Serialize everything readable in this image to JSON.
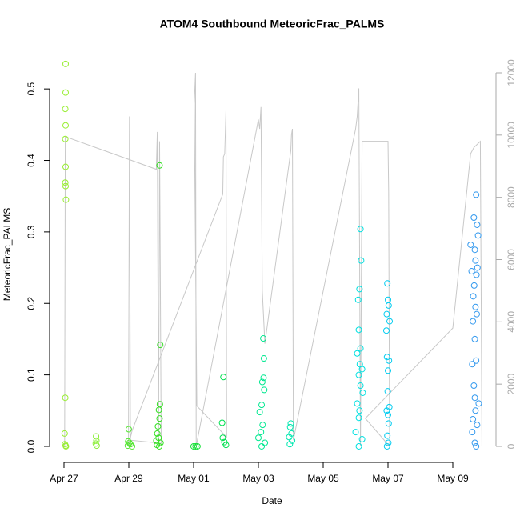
{
  "chart_data": {
    "type": "scatter",
    "title": "ATOM4 Southbound MeteoricFrac_PALMS",
    "x_label": "Date",
    "y_label": "MeteoricFrac_PALMS",
    "xlim": [
      -0.444,
      13.333
    ],
    "xticks": [
      {
        "value": 0,
        "label": "Apr 27"
      },
      {
        "value": 2,
        "label": "Apr 29"
      },
      {
        "value": 4,
        "label": "May 01"
      },
      {
        "value": 6,
        "label": "May 03"
      },
      {
        "value": 8,
        "label": "May 05"
      },
      {
        "value": 10,
        "label": "May 07"
      },
      {
        "value": 12,
        "label": "May 09"
      }
    ],
    "ylim": [
      -0.0224,
      0.555
    ],
    "yticks": [
      {
        "value": 0,
        "label": "0.0"
      },
      0.1,
      0.2,
      0.3,
      0.4,
      0.5
    ],
    "y2lim": [
      -514,
      12745
    ],
    "y2ticks": [
      0,
      2000,
      4000,
      6000,
      8000,
      10000,
      12000
    ],
    "series": [
      {
        "type": "line",
        "axis": "y2",
        "color": "#c8c8c8",
        "x": [
          0.02,
          0.04,
          2.85,
          2.88,
          2.92,
          2.95,
          3.0,
          2.05,
          2.02,
          1.99,
          2.1,
          4.9,
          4.92,
          4.96,
          5.0,
          5.02,
          4.1,
          4.02,
          4.06,
          4.08,
          6.0,
          6.04,
          6.08,
          6.12,
          6.2,
          7.0,
          7.02,
          7.05,
          7.08,
          9.0,
          9.05,
          9.1,
          9.15,
          9.2,
          10.0,
          10.02,
          10.05,
          9.3,
          12.0,
          12.55,
          12.65,
          12.75,
          12.85,
          12.9
        ],
        "values": [
          0,
          9950,
          8900,
          10100,
          200,
          9800,
          100,
          200,
          10600,
          0,
          500,
          8100,
          9300,
          9400,
          10800,
          300,
          1300,
          11000,
          12000,
          0,
          10500,
          10200,
          10900,
          5000,
          3300,
          9500,
          10000,
          10200,
          200,
          10200,
          10600,
          11500,
          0,
          9800,
          9800,
          8200,
          0,
          900,
          3800,
          9400,
          9600,
          9700,
          9800,
          0
        ]
      },
      {
        "color": "#99ee33",
        "x": [
          0.05,
          0.05,
          0.04,
          0.05,
          0.04,
          0.05,
          0.04,
          0.05,
          0.06,
          0.04,
          0.02,
          0.03,
          0.05,
          0.06
        ],
        "values": [
          0.535,
          0.495,
          0.472,
          0.449,
          0.43,
          0.391,
          0.369,
          0.364,
          0.345,
          0.068,
          0.018,
          0.003,
          0.001,
          0
        ]
      },
      {
        "color": "#88ee33",
        "x": [
          0.99,
          1.0,
          0.98,
          1.01
        ],
        "values": [
          0.014,
          0.008,
          0.004,
          0.001
        ]
      },
      {
        "color": "#55e633",
        "x": [
          2.0,
          1.98,
          2.02,
          2.05,
          1.97,
          2.1
        ],
        "values": [
          0.024,
          0.007,
          0.005,
          0.003,
          0.001,
          0
        ]
      },
      {
        "color": "#33e022",
        "x": [
          2.95,
          2.97,
          2.96,
          2.93,
          2.95,
          2.9,
          2.88,
          2.92,
          2.85,
          2.98,
          2.87,
          2.94
        ],
        "values": [
          0.393,
          0.142,
          0.059,
          0.051,
          0.039,
          0.028,
          0.018,
          0.012,
          0.008,
          0.005,
          0.002,
          0
        ]
      },
      {
        "color": "#11e033",
        "x": [
          4.0,
          4.06,
          4.12
        ],
        "values": [
          0,
          0,
          0
        ]
      },
      {
        "color": "#00e050",
        "x": [
          4.92,
          4.88,
          4.9,
          4.95,
          5.0
        ],
        "values": [
          0.097,
          0.033,
          0.012,
          0.006,
          0.002
        ]
      },
      {
        "color": "#00e890",
        "x": [
          6.15,
          6.17,
          6.16,
          6.12,
          6.18,
          6.1,
          6.04,
          6.13,
          6.08,
          6.0,
          6.2,
          6.1
        ],
        "values": [
          0.151,
          0.123,
          0.096,
          0.09,
          0.079,
          0.058,
          0.048,
          0.03,
          0.02,
          0.012,
          0.005,
          0
        ]
      },
      {
        "color": "#00e8b0",
        "x": [
          7.0,
          6.98,
          7.02,
          6.95,
          7.04,
          6.97
        ],
        "values": [
          0.032,
          0.027,
          0.018,
          0.013,
          0.008,
          0.003
        ]
      },
      {
        "color": "#00e0e0",
        "x": [
          9.15,
          9.17,
          9.12,
          9.08,
          9.1,
          9.15,
          9.05,
          9.13,
          9.2,
          9.1,
          9.15,
          9.22,
          9.05,
          9.12,
          9.1,
          9.0,
          9.2,
          9.1
        ],
        "values": [
          0.304,
          0.26,
          0.22,
          0.205,
          0.163,
          0.137,
          0.13,
          0.115,
          0.108,
          0.1,
          0.085,
          0.075,
          0.06,
          0.05,
          0.04,
          0.02,
          0.01,
          0
        ]
      },
      {
        "color": "#00ccf0",
        "x": [
          9.98,
          10.0,
          10.02,
          9.96,
          10.05,
          9.95,
          9.97,
          10.03,
          10.0,
          9.99,
          10.04,
          9.96,
          10.0,
          10.02,
          9.98,
          10.01,
          9.97
        ],
        "values": [
          0.228,
          0.205,
          0.197,
          0.185,
          0.175,
          0.162,
          0.125,
          0.12,
          0.106,
          0.077,
          0.055,
          0.05,
          0.044,
          0.032,
          0.015,
          0.005,
          0
        ]
      },
      {
        "color": "#3399ee",
        "x": [
          12.72,
          12.65,
          12.75,
          12.78,
          12.55,
          12.68,
          12.7,
          12.76,
          12.58,
          12.73,
          12.66,
          12.63,
          12.7,
          12.74,
          12.62,
          12.68,
          12.72,
          12.6,
          12.65,
          12.68,
          12.8,
          12.7,
          12.62,
          12.75,
          12.6,
          12.68,
          12.72
        ],
        "values": [
          0.352,
          0.32,
          0.31,
          0.295,
          0.282,
          0.275,
          0.26,
          0.25,
          0.245,
          0.24,
          0.225,
          0.21,
          0.195,
          0.185,
          0.175,
          0.15,
          0.12,
          0.115,
          0.085,
          0.068,
          0.06,
          0.05,
          0.038,
          0.03,
          0.02,
          0.005,
          0
        ]
      }
    ]
  }
}
